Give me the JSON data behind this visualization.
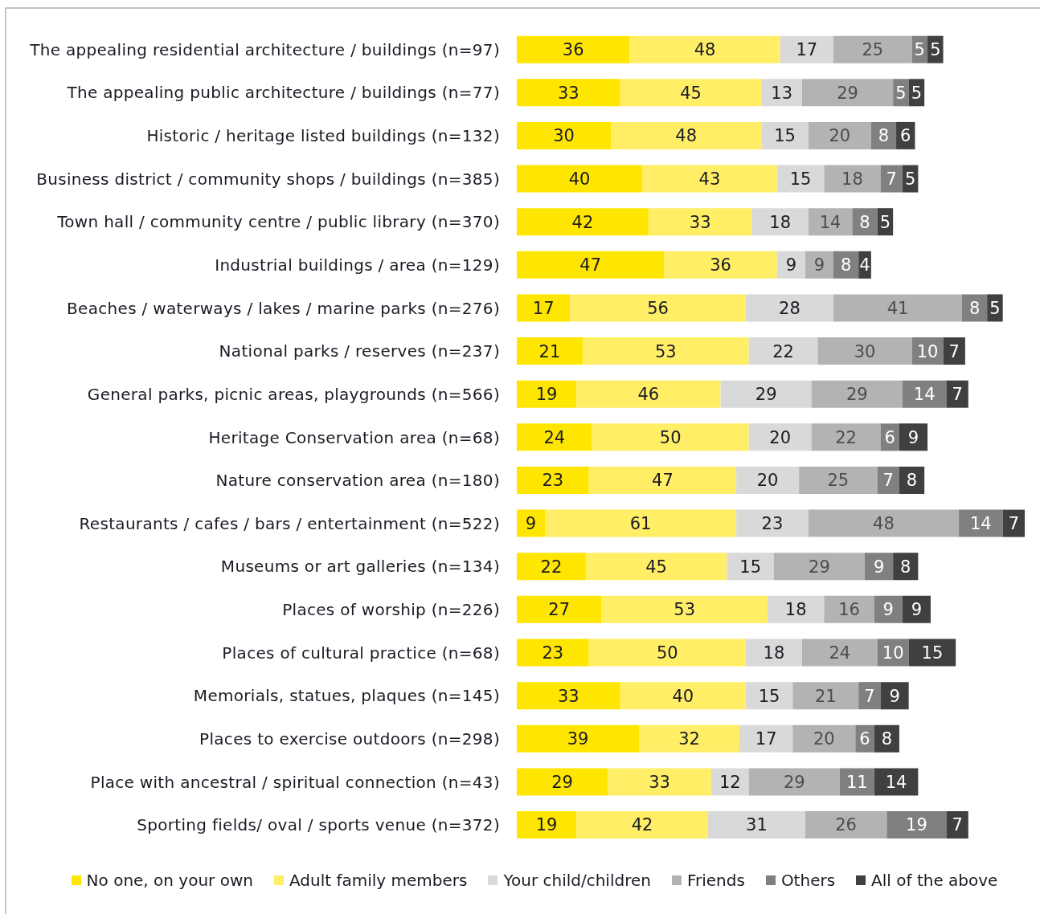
{
  "chart_data": {
    "type": "bar",
    "orientation": "horizontal",
    "stacked": true,
    "data_labels": true,
    "legend": "bottom",
    "categories": [
      "The appealing residential architecture / buildings (n=97)",
      "The appealing public architecture / buildings (n=77)",
      "Historic / heritage listed buildings (n=132)",
      "Business district / community shops / buildings (n=385)",
      "Town hall / community centre / public library (n=370)",
      "Industrial buildings / area (n=129)",
      "Beaches / waterways / lakes / marine parks (n=276)",
      "National parks / reserves (n=237)",
      "General parks, picnic areas, playgrounds (n=566)",
      "Heritage Conservation area (n=68)",
      "Nature conservation area (n=180)",
      "Restaurants / cafes / bars / entertainment (n=522)",
      "Museums or art galleries (n=134)",
      "Places of worship (n=226)",
      "Places of cultural practice (n=68)",
      "Memorials, statues, plaques (n=145)",
      "Places to exercise outdoors (n=298)",
      "Place with ancestral / spiritual connection (n=43)",
      "Sporting fields/ oval / sports venue (n=372)"
    ],
    "series": [
      {
        "name": "No one, on your own",
        "color": "#ffe600",
        "values": [
          36,
          33,
          30,
          40,
          42,
          47,
          17,
          21,
          19,
          24,
          23,
          9,
          22,
          27,
          23,
          33,
          39,
          29,
          19
        ]
      },
      {
        "name": "Adult family members",
        "color": "#ffee66",
        "values": [
          48,
          45,
          48,
          43,
          33,
          36,
          56,
          53,
          46,
          50,
          47,
          61,
          45,
          53,
          50,
          40,
          32,
          33,
          42
        ]
      },
      {
        "name": "Your child/children",
        "color": "#d9d9d9",
        "values": [
          17,
          13,
          15,
          15,
          18,
          9,
          28,
          22,
          29,
          20,
          20,
          23,
          15,
          18,
          18,
          15,
          17,
          12,
          31
        ]
      },
      {
        "name": "Friends",
        "color": "#b3b3b3",
        "values": [
          25,
          29,
          20,
          18,
          14,
          9,
          41,
          30,
          29,
          22,
          25,
          48,
          29,
          16,
          24,
          21,
          20,
          29,
          26
        ]
      },
      {
        "name": "Others",
        "color": "#808080",
        "values": [
          5,
          5,
          8,
          7,
          8,
          8,
          8,
          10,
          14,
          6,
          7,
          14,
          9,
          9,
          10,
          7,
          6,
          11,
          19
        ]
      },
      {
        "name": "All of the above",
        "color": "#404040",
        "values": [
          5,
          5,
          6,
          5,
          5,
          4,
          5,
          7,
          7,
          9,
          8,
          7,
          8,
          9,
          15,
          9,
          8,
          14,
          7
        ]
      }
    ]
  }
}
